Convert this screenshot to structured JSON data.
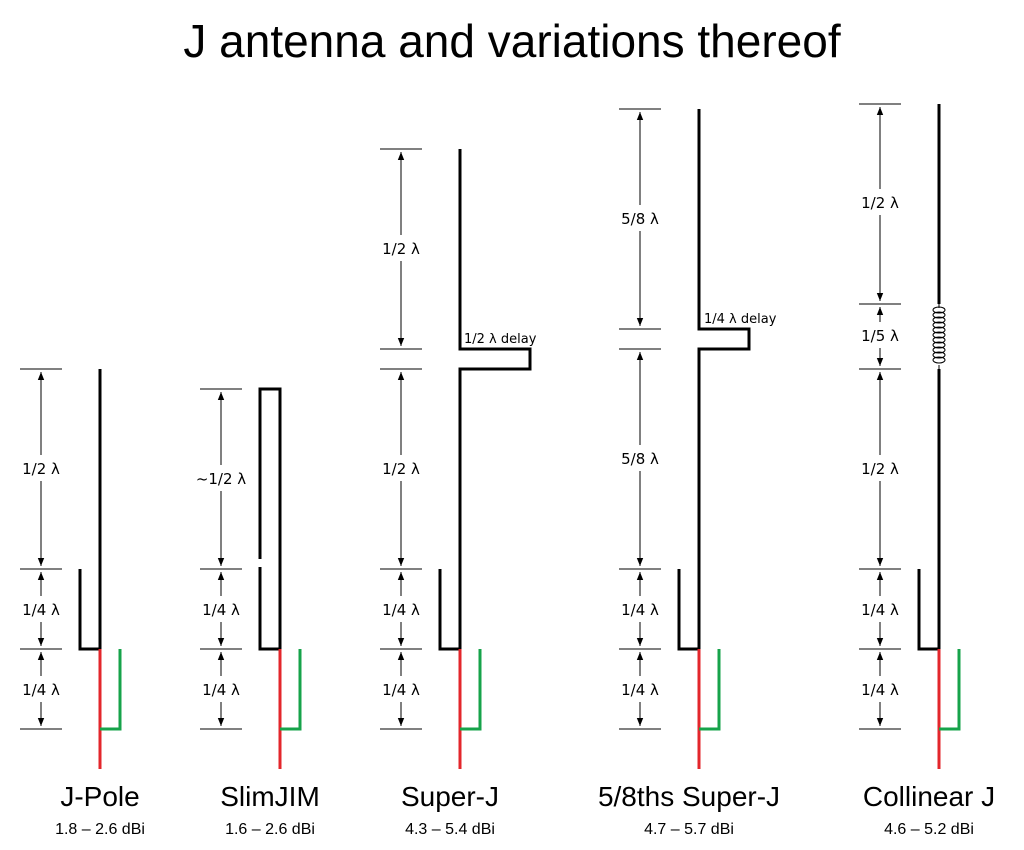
{
  "title": "J antenna and variations thereof",
  "colors": {
    "radiator": "#000000",
    "feed": "#e3262b",
    "matching_stub": "#16a34a"
  },
  "antennas": [
    {
      "name": "J-Pole",
      "gain": "1.8 – 2.6 dBi",
      "dims": [
        {
          "label": "1/2 λ"
        },
        {
          "label": "1/4 λ"
        },
        {
          "label": "1/4 λ"
        }
      ]
    },
    {
      "name": "SlimJIM",
      "gain": "1.6 – 2.6 dBi",
      "dims": [
        {
          "label": "~1/2 λ"
        },
        {
          "label": "1/4 λ"
        },
        {
          "label": "1/4 λ"
        }
      ]
    },
    {
      "name": "Super-J",
      "gain": "4.3 – 5.4 dBi",
      "delay": "1/2 λ delay",
      "dims": [
        {
          "label": "1/2 λ"
        },
        {
          "label": "1/2 λ"
        },
        {
          "label": "1/4 λ"
        },
        {
          "label": "1/4 λ"
        }
      ]
    },
    {
      "name": "5/8ths Super-J",
      "gain": "4.7 – 5.7 dBi",
      "delay": "1/4 λ delay",
      "dims": [
        {
          "label": "5/8 λ"
        },
        {
          "label": "5/8 λ"
        },
        {
          "label": "1/4 λ"
        },
        {
          "label": "1/4 λ"
        }
      ]
    },
    {
      "name": "Collinear J",
      "gain": "4.6 – 5.2 dBi",
      "dims": [
        {
          "label": "1/2 λ"
        },
        {
          "label": "1/5 λ"
        },
        {
          "label": "1/2 λ"
        },
        {
          "label": "1/4 λ"
        },
        {
          "label": "1/4 λ"
        }
      ]
    }
  ]
}
